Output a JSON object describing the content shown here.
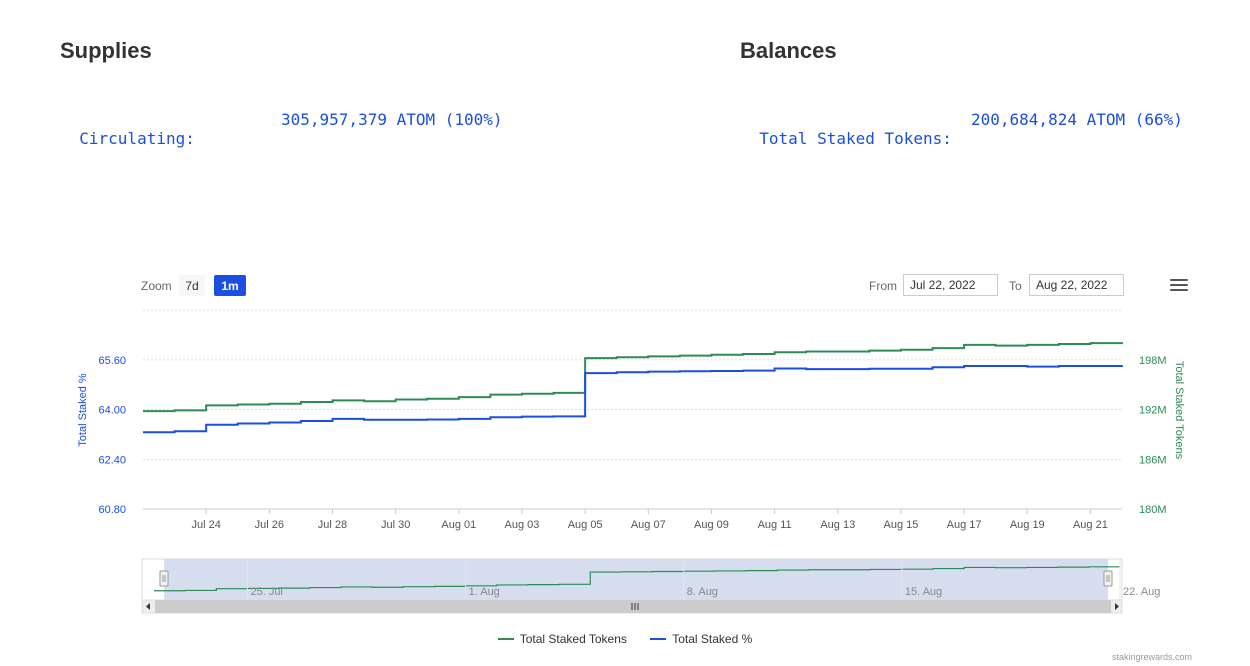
{
  "supplies": {
    "title": "Supplies",
    "label": "Circulating:",
    "value": "305,957,379 ATOM (100%)"
  },
  "balances": {
    "title": "Balances",
    "label": "Total Staked Tokens:",
    "value": "200,684,824 ATOM (66%)"
  },
  "toolbar": {
    "zoom_label": "Zoom",
    "zoom_options": [
      "7d",
      "1m"
    ],
    "zoom_selected": "1m",
    "from_label": "From",
    "from_value": "Jul 22, 2022",
    "to_label": "To",
    "to_value": "Aug 22, 2022",
    "menu_icon": "hamburger-menu-icon"
  },
  "colors": {
    "staked_tokens": "#2e8b57",
    "staked_percent": "#1a4fe0"
  },
  "chart_data": {
    "type": "line",
    "x_ticks": [
      "Jul 24",
      "Jul 26",
      "Jul 28",
      "Jul 30",
      "Aug 01",
      "Aug 03",
      "Aug 05",
      "Aug 07",
      "Aug 09",
      "Aug 11",
      "Aug 13",
      "Aug 15",
      "Aug 17",
      "Aug 19",
      "Aug 21"
    ],
    "xlim": [
      "2022-07-22",
      "2022-08-22"
    ],
    "y_left": {
      "label": "Total Staked %",
      "ticks": [
        "60.80",
        "62.40",
        "64.00",
        "65.60"
      ],
      "ylim": [
        60.8,
        67.2
      ]
    },
    "y_right": {
      "label": "Total Staked Tokens",
      "ticks": [
        "180M",
        "186M",
        "192M",
        "198M"
      ],
      "ylim": [
        180,
        204
      ]
    },
    "series": [
      {
        "name": "Total Staked Tokens",
        "axis": "right",
        "x": [
          "2022-07-22",
          "2022-07-23",
          "2022-07-24",
          "2022-07-25",
          "2022-07-26",
          "2022-07-27",
          "2022-07-28",
          "2022-07-29",
          "2022-07-30",
          "2022-07-31",
          "2022-08-01",
          "2022-08-02",
          "2022-08-03",
          "2022-08-04",
          "2022-08-05",
          "2022-08-06",
          "2022-08-07",
          "2022-08-08",
          "2022-08-09",
          "2022-08-10",
          "2022-08-11",
          "2022-08-12",
          "2022-08-13",
          "2022-08-14",
          "2022-08-15",
          "2022-08-16",
          "2022-08-17",
          "2022-08-18",
          "2022-08-19",
          "2022-08-20",
          "2022-08-21",
          "2022-08-22"
        ],
        "values": [
          191.8,
          191.9,
          192.5,
          192.6,
          192.7,
          192.9,
          193.1,
          193.0,
          193.2,
          193.3,
          193.5,
          193.8,
          193.9,
          194.0,
          198.2,
          198.3,
          198.4,
          198.5,
          198.6,
          198.7,
          198.9,
          199.0,
          199.0,
          199.1,
          199.2,
          199.4,
          199.8,
          199.7,
          199.8,
          199.9,
          200.0,
          200.1
        ]
      },
      {
        "name": "Total Staked %",
        "axis": "left",
        "x": [
          "2022-07-22",
          "2022-07-23",
          "2022-07-24",
          "2022-07-25",
          "2022-07-26",
          "2022-07-27",
          "2022-07-28",
          "2022-07-29",
          "2022-07-30",
          "2022-07-31",
          "2022-08-01",
          "2022-08-02",
          "2022-08-03",
          "2022-08-04",
          "2022-08-05",
          "2022-08-06",
          "2022-08-07",
          "2022-08-08",
          "2022-08-09",
          "2022-08-10",
          "2022-08-11",
          "2022-08-12",
          "2022-08-13",
          "2022-08-14",
          "2022-08-15",
          "2022-08-16",
          "2022-08-17",
          "2022-08-18",
          "2022-08-19",
          "2022-08-20",
          "2022-08-21",
          "2022-08-22"
        ],
        "values": [
          63.27,
          63.3,
          63.51,
          63.55,
          63.58,
          63.63,
          63.7,
          63.67,
          63.67,
          63.68,
          63.7,
          63.75,
          63.77,
          63.78,
          65.17,
          65.2,
          65.22,
          65.23,
          65.24,
          65.25,
          65.32,
          65.3,
          65.3,
          65.31,
          65.31,
          65.36,
          65.4,
          65.4,
          65.38,
          65.4,
          65.4,
          65.42
        ]
      }
    ],
    "navigator": {
      "x_ticks": [
        "25. Jul",
        "1. Aug",
        "8. Aug",
        "15. Aug",
        "22. Aug"
      ]
    },
    "legend": [
      "Total Staked Tokens",
      "Total Staked %"
    ],
    "legend_position": "bottom-center"
  },
  "credits": "stakingrewards.com"
}
